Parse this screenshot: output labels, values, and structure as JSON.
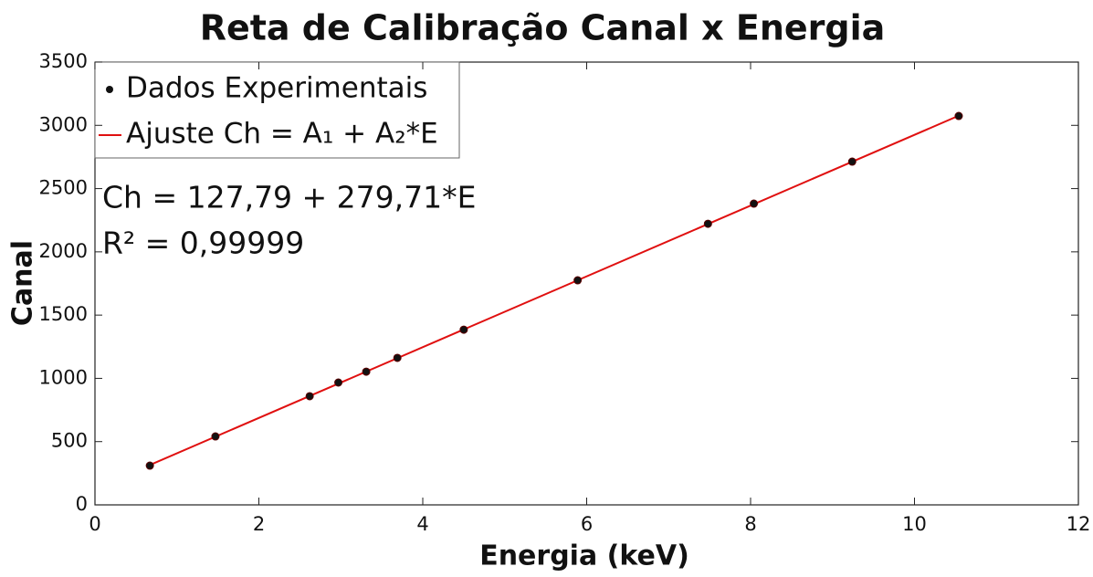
{
  "chart_data": {
    "type": "scatter",
    "title": "Reta de Calibração Canal x Energia",
    "x_label": "Energia (keV)",
    "y_label": "Canal",
    "annotations": [
      "Ch = 127,79 + 279,71*E",
      "R² = 0,99999"
    ],
    "xlim": [
      0,
      12
    ],
    "xticks": [
      0,
      2,
      4,
      6,
      8,
      10,
      12
    ],
    "ylim": [
      0,
      3500
    ],
    "yticks": [
      0,
      500,
      1000,
      1500,
      2000,
      2500,
      3000,
      3500
    ],
    "legend": "upper left",
    "series": [
      {
        "name": "Dados Experimentais",
        "color": "#111111",
        "mode": "markers",
        "x": [
          0.67,
          1.47,
          2.62,
          2.97,
          3.31,
          3.69,
          4.5,
          5.89,
          7.48,
          8.04,
          9.24,
          10.54
        ],
        "values": [
          310,
          541,
          859,
          967,
          1053,
          1162,
          1385,
          1775,
          2222,
          2381,
          2713,
          3074
        ]
      },
      {
        "name": "Ajuste Ch = A₁ + A₂*E",
        "color": "#e01010",
        "mode": "line",
        "x": [
          0.68,
          10.54
        ],
        "values": [
          318,
          3076
        ]
      }
    ]
  }
}
